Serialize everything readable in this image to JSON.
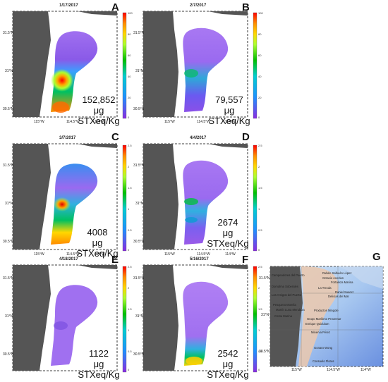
{
  "unit": "μg STXeq/Kg",
  "axes": {
    "y_ticks": [
      "31.5°N",
      "31°N",
      "30.5°N"
    ],
    "x_ticks": [
      "115°W",
      "114.5°W",
      "114°W"
    ]
  },
  "colorbar_colors": [
    "#8a2be2",
    "#6a5acd",
    "#1e90ff",
    "#00ced1",
    "#00c000",
    "#adff2f",
    "#ffd700",
    "#ff8c00",
    "#ff0000",
    "#c00000"
  ],
  "panels": [
    {
      "letter": "A",
      "date": "1/17/2017",
      "value": "152,852",
      "cb_ticks": [
        "100",
        "80",
        "60",
        "40",
        "20",
        "0"
      ]
    },
    {
      "letter": "B",
      "date": "2/7/2017",
      "value": "79,557",
      "cb_ticks": [
        "100",
        "80",
        "60",
        "40",
        "20",
        "0"
      ]
    },
    {
      "letter": "C",
      "date": "3/7/2017",
      "value": "4008",
      "cb_ticks": [
        "2.5",
        "2",
        "1.5",
        "1",
        "0.5",
        "0"
      ]
    },
    {
      "letter": "D",
      "date": "4/4/2017",
      "value": "2674",
      "cb_ticks": [
        "2.5",
        "2",
        "1.5",
        "1",
        "0.5",
        "0"
      ]
    },
    {
      "letter": "E",
      "date": "4/18/2017",
      "value": "1122",
      "cb_ticks": [
        "2.5",
        "2",
        "1.5",
        "1",
        "0.5",
        "0"
      ]
    },
    {
      "letter": "F",
      "date": "5/16/2017",
      "value": "2542",
      "cb_ticks": [
        "2.5",
        "2",
        "1.5",
        "1",
        "0.5",
        "0"
      ]
    }
  ],
  "site_map": {
    "letter": "G",
    "sites": [
      "Campeadores del Puerto",
      "Rubén Salbuán López",
      "Octavio Acevlan",
      "Fortaleza Marina",
      "Domalma Soberales",
      "La Trecda",
      "Los Amigos del Puerto",
      "Daniel Suarez",
      "Delicias del Mar",
      "Pesquera Morelia",
      "Martín Luna Mendoza",
      "Productos Mingole",
      "Costa Marina",
      "Grupo Marítimo Provemar",
      "Enrique Quidulum",
      "Minerva Pérez",
      "Gonaro Wong",
      "Consuelo Flores"
    ]
  }
}
